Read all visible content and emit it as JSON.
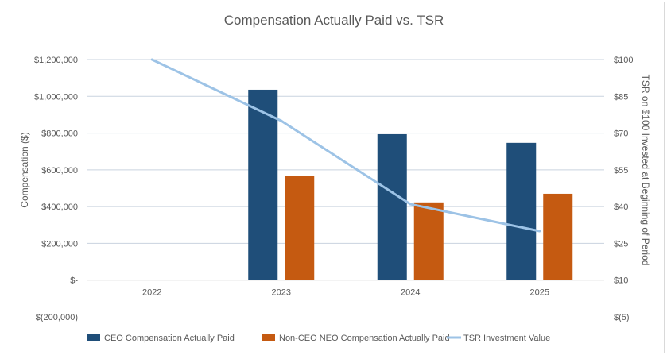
{
  "chart_data": {
    "type": "bar",
    "title": "Compensation Actually Paid vs. TSR",
    "categories": [
      "2022",
      "2023",
      "2024",
      "2025"
    ],
    "ylabel": "Compensation ($)",
    "y2label": "TSR on $100 Invested at Beginning of Period",
    "ylim": [
      -200000,
      1200000
    ],
    "y2lim": [
      -5,
      100
    ],
    "yticks": [
      "$(200,000)",
      "$-",
      "$200,000",
      "$400,000",
      "$600,000",
      "$800,000",
      "$1,000,000",
      "$1,200,000"
    ],
    "y2ticks": [
      "$(5)",
      "$10",
      "$25",
      "$40",
      "$55",
      "$70",
      "$85",
      "$100"
    ],
    "grid": true,
    "legend_position": "bottom",
    "series": [
      {
        "name": "CEO Compensation Actually Paid",
        "type": "bar",
        "axis": "left",
        "color": "#1f4e79",
        "values": [
          null,
          1036000,
          794000,
          747000
        ]
      },
      {
        "name": "Non-CEO NEO Compensation Actually Paid",
        "type": "bar",
        "axis": "left",
        "color": "#c55a11",
        "values": [
          null,
          565000,
          423000,
          470000
        ]
      },
      {
        "name": "TSR Investment Value",
        "type": "line",
        "axis": "right",
        "color": "#9dc3e6",
        "values": [
          100,
          75,
          41,
          30
        ]
      }
    ]
  }
}
